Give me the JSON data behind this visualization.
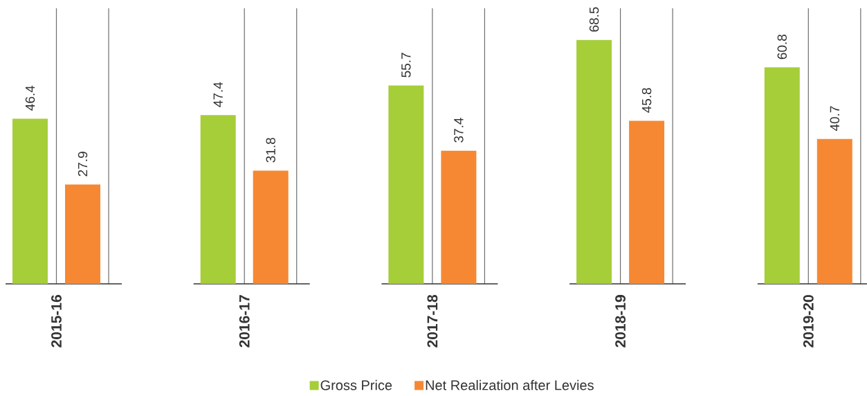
{
  "chart_data": {
    "type": "bar",
    "categories": [
      "2015-16",
      "2016-17",
      "2017-18",
      "2018-19",
      "2019-20"
    ],
    "series": [
      {
        "name": "Gross Price",
        "color": "#a6ce39",
        "values": [
          46.4,
          47.4,
          55.7,
          68.5,
          60.8
        ]
      },
      {
        "name": "Net Realization after Levies",
        "color": "#f68833",
        "values": [
          27.9,
          31.8,
          37.4,
          45.8,
          40.7
        ]
      }
    ],
    "data_labels": true,
    "grid": "x",
    "legend": "bottom",
    "tick_labels": "x"
  }
}
